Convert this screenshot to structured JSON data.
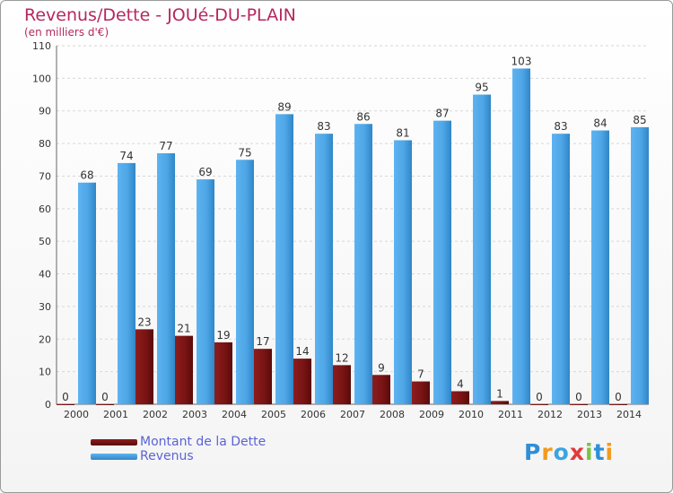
{
  "title": "Revenus/Dette - JOUé-DU-PLAIN",
  "subtitle": "(en milliers d'€)",
  "brand": {
    "letters": [
      "P",
      "r",
      "o",
      "x",
      "i",
      "t",
      "i"
    ],
    "colors": [
      "#2e8fd8",
      "#f39a1f",
      "#3ca4e0",
      "#e23a3a",
      "#7cc243",
      "#2e8fd8",
      "#f39a1f"
    ]
  },
  "colors": {
    "debt": "#7a1414",
    "revenue": "#4ea6e6"
  },
  "chart_data": {
    "type": "bar",
    "categories": [
      "2000",
      "2001",
      "2002",
      "2003",
      "2004",
      "2005",
      "2006",
      "2007",
      "2008",
      "2009",
      "2010",
      "2011",
      "2012",
      "2013",
      "2014"
    ],
    "series": [
      {
        "name": "Montant de la Dette",
        "values": [
          0,
          0,
          23,
          21,
          19,
          17,
          14,
          12,
          9,
          7,
          4,
          1,
          0,
          0,
          0
        ]
      },
      {
        "name": "Revenus",
        "values": [
          68,
          74,
          77,
          69,
          75,
          89,
          83,
          86,
          81,
          87,
          95,
          103,
          83,
          84,
          85
        ]
      }
    ],
    "yticks": [
      0,
      10,
      20,
      30,
      40,
      50,
      60,
      70,
      80,
      90,
      100,
      110
    ],
    "ylim": [
      0,
      110
    ],
    "grid": true,
    "legend": "bottom-left"
  }
}
